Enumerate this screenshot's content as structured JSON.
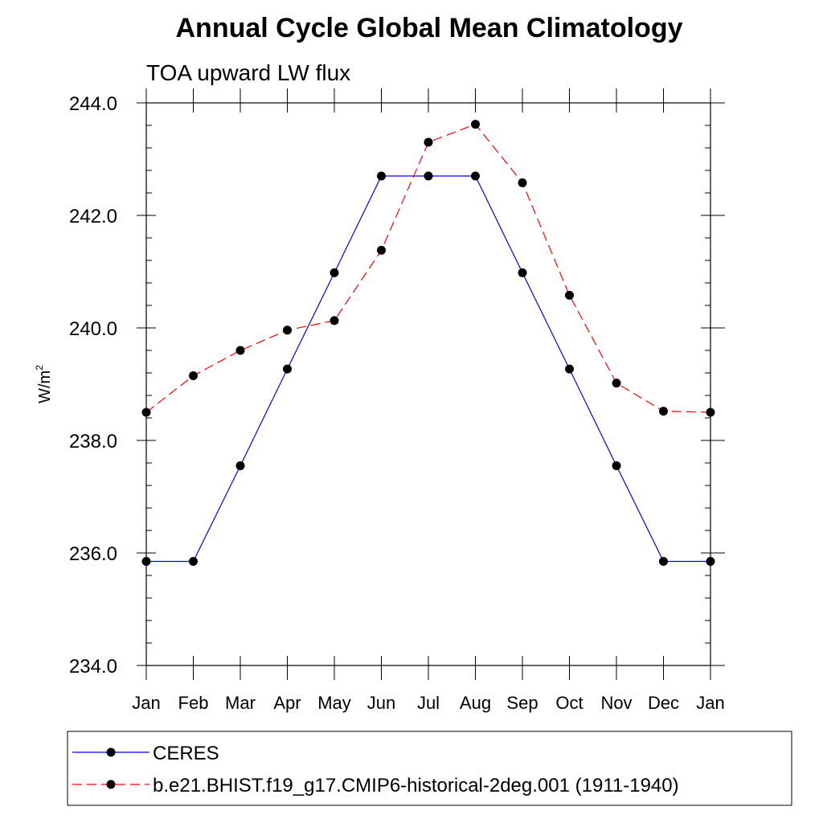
{
  "chart_data": {
    "type": "line",
    "title": "Annual Cycle Global Mean Climatology",
    "subtitle": "TOA upward LW flux",
    "ylabel_base": "W/m",
    "ylabel_sup": "2",
    "xlabel": "",
    "categories": [
      "Jan",
      "Feb",
      "Mar",
      "Apr",
      "May",
      "Jun",
      "Jul",
      "Aug",
      "Sep",
      "Oct",
      "Nov",
      "Dec",
      "Jan"
    ],
    "ylim": [
      234.0,
      244.0
    ],
    "yticks": [
      "234.0",
      "236.0",
      "238.0",
      "240.0",
      "242.0",
      "244.0"
    ],
    "grid": false,
    "legend_position": "bottom",
    "series": [
      {
        "name": "CERES",
        "color": "#0000ff",
        "line_style": "solid",
        "marker": "filled-circle",
        "values": [
          235.85,
          235.85,
          237.55,
          239.27,
          240.98,
          242.7,
          242.7,
          242.7,
          240.98,
          239.27,
          237.55,
          235.85,
          235.85
        ]
      },
      {
        "name": "b.e21.BHIST.f19_g17.CMIP6-historical-2deg.001 (1911-1940)",
        "color": "#ff0000",
        "line_style": "dashed",
        "marker": "filled-circle",
        "values": [
          238.5,
          239.15,
          239.6,
          239.96,
          240.13,
          241.38,
          243.3,
          243.62,
          242.58,
          240.58,
          239.02,
          238.52,
          238.5
        ]
      }
    ]
  }
}
